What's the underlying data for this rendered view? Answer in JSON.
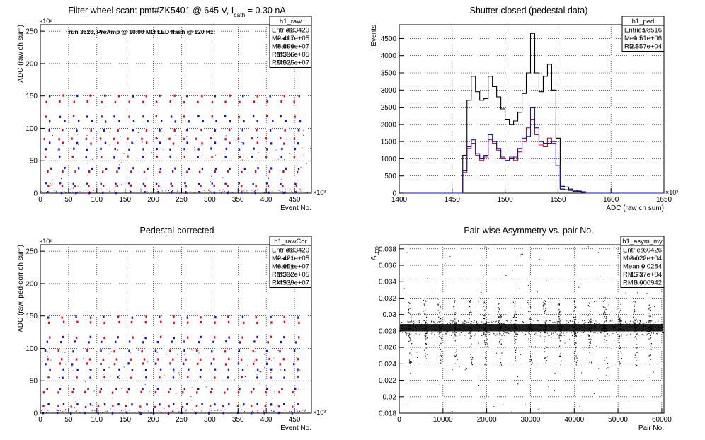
{
  "chart_data": [
    {
      "type": "scatter",
      "title": "Filter wheel scan: pmt#ZK5401 @   645 V, I",
      "title_sub": "cath",
      "title_tail": " = 0.30 nA",
      "annotation": "run 3620, PreAmp @ 10.00 MΩ LED flash @  120 Hz:",
      "xlabel": "Event No.",
      "ylabel": "ADC (raw ch sum)",
      "x_exponent": "×10³",
      "y_exponent": "×10⁶",
      "xlim": [
        0,
        480
      ],
      "ylim": [
        0,
        260
      ],
      "xticks": [
        "0",
        "50",
        "100",
        "150",
        "200",
        "250",
        "300",
        "350",
        "400",
        "450"
      ],
      "yticks": [
        "0",
        "50",
        "100",
        "150",
        "200",
        "250"
      ],
      "grid": true,
      "stats": {
        "name": "h1_raw",
        "rows": [
          [
            "Entries",
            "483420"
          ],
          [
            "Mean x",
            "2.417e+05"
          ],
          [
            "Mean y",
            "5.596e+07"
          ],
          [
            "RMS x",
            "1.396e+05"
          ],
          [
            "RMS y",
            "5.025e+07"
          ]
        ]
      },
      "bands": [
        {
          "value": 150,
          "colors": [
            "blue",
            "red"
          ]
        },
        {
          "value": 141,
          "colors": [
            "red"
          ]
        },
        {
          "value": 118,
          "colors": [
            "red",
            "blue"
          ]
        },
        {
          "value": 111,
          "colors": [
            "blue"
          ]
        },
        {
          "value": 97,
          "colors": [
            "blue",
            "red"
          ]
        },
        {
          "value": 84,
          "colors": [
            "red"
          ]
        },
        {
          "value": 77,
          "colors": [
            "blue",
            "red"
          ]
        },
        {
          "value": 68,
          "colors": [
            "blue"
          ]
        },
        {
          "value": 56,
          "colors": [
            "red",
            "blue"
          ]
        },
        {
          "value": 38,
          "colors": [
            "blue"
          ]
        },
        {
          "value": 33,
          "colors": [
            "red"
          ]
        },
        {
          "value": 15,
          "colors": [
            "blue"
          ]
        },
        {
          "value": 11,
          "colors": [
            "red"
          ]
        },
        {
          "value": 1,
          "colors": [
            "blue"
          ]
        }
      ],
      "colors": {
        "red": "#e8001c",
        "blue": "#1010d0"
      }
    },
    {
      "type": "histogram",
      "title": "Shutter closed (pedestal data)",
      "xlabel": "ADC (raw ch sum)",
      "ylabel": "Events",
      "x_exponent": "×10³",
      "xlim": [
        1400,
        1650
      ],
      "ylim": [
        0,
        4900
      ],
      "xticks": [
        "1400",
        "1450",
        "1500",
        "1550",
        "1600",
        "1650"
      ],
      "yticks": [
        "0",
        "500",
        "1000",
        "1500",
        "2000",
        "2500",
        "3000",
        "3500",
        "4000",
        "4500"
      ],
      "grid": true,
      "stats": {
        "name": "h1_ped",
        "rows": [
          [
            "Entries",
            "98516"
          ],
          [
            "Mean",
            "1.51e+06"
          ],
          [
            "RMS",
            "2.657e+04"
          ]
        ]
      },
      "bin_edges": [
        1460,
        1464,
        1468,
        1472,
        1476,
        1480,
        1484,
        1488,
        1492,
        1496,
        1500,
        1504,
        1508,
        1512,
        1516,
        1520,
        1524,
        1528,
        1532,
        1536,
        1540,
        1544,
        1548,
        1552,
        1556,
        1560,
        1564,
        1568,
        1572,
        1576
      ],
      "series": [
        {
          "color": "#000000",
          "values": [
            1100,
            2700,
            3400,
            2950,
            2700,
            2750,
            3400,
            3100,
            2800,
            2450,
            2150,
            2000,
            2100,
            2350,
            2900,
            3500,
            4650,
            3500,
            2950,
            3400,
            3750,
            3000,
            1600,
            200,
            180,
            120,
            80,
            60,
            40
          ]
        },
        {
          "color": "#e8001c",
          "values": [
            600,
            1300,
            1450,
            1100,
            950,
            1050,
            1550,
            1450,
            1250,
            1000,
            950,
            1050,
            950,
            1200,
            1500,
            1900,
            2150,
            1700,
            1400,
            1350,
            1600,
            1450,
            800,
            120,
            100,
            80,
            50,
            40,
            20
          ]
        },
        {
          "color": "#1010d0",
          "values": [
            650,
            1350,
            1550,
            1150,
            1000,
            1100,
            1700,
            1500,
            1300,
            1050,
            950,
            1000,
            1050,
            1300,
            1600,
            1650,
            2500,
            1900,
            1500,
            1450,
            1450,
            1500,
            800,
            120,
            100,
            80,
            50,
            40,
            20
          ]
        }
      ]
    },
    {
      "type": "scatter",
      "title": "Pedestal-corrected",
      "xlabel": "Event No.",
      "ylabel": "ADC (raw, ped-corr ch sum)",
      "x_exponent": "×10³",
      "y_exponent": "×10⁶",
      "xlim": [
        0,
        480
      ],
      "ylim": [
        0,
        260
      ],
      "xticks": [
        "0",
        "50",
        "100",
        "150",
        "200",
        "250",
        "300",
        "350",
        "400",
        "450"
      ],
      "yticks": [
        "0",
        "50",
        "100",
        "150",
        "200",
        "250"
      ],
      "grid": true,
      "stats": {
        "name": "h1_rawCor",
        "rows": [
          [
            "Entries",
            "483420"
          ],
          [
            "Mean x",
            "2.421e+05"
          ],
          [
            "Mean y",
            "6.051e+07"
          ],
          [
            "RMS x",
            "1.392e+05"
          ],
          [
            "RMS y",
            "4.939e+07"
          ]
        ]
      },
      "bands": [
        {
          "value": 148,
          "colors": [
            "blue",
            "red"
          ]
        },
        {
          "value": 140,
          "colors": [
            "red"
          ]
        },
        {
          "value": 117,
          "colors": [
            "red",
            "blue"
          ]
        },
        {
          "value": 110,
          "colors": [
            "blue"
          ]
        },
        {
          "value": 96,
          "colors": [
            "blue",
            "red"
          ]
        },
        {
          "value": 83,
          "colors": [
            "red"
          ]
        },
        {
          "value": 76,
          "colors": [
            "blue",
            "red"
          ]
        },
        {
          "value": 67,
          "colors": [
            "blue"
          ]
        },
        {
          "value": 55,
          "colors": [
            "red",
            "blue"
          ]
        },
        {
          "value": 37,
          "colors": [
            "blue"
          ]
        },
        {
          "value": 32,
          "colors": [
            "red"
          ]
        },
        {
          "value": 14,
          "colors": [
            "blue"
          ]
        },
        {
          "value": 10,
          "colors": [
            "red"
          ]
        },
        {
          "value": 0,
          "colors": [
            "blue"
          ]
        }
      ],
      "colors": {
        "red": "#e8001c",
        "blue": "#1010d0"
      }
    },
    {
      "type": "scatter",
      "title": "Pair-wise Asymmetry vs. pair No.",
      "xlabel": "Pair No.",
      "ylabel": "A",
      "ylabel_sub": "LED",
      "xlim": [
        0,
        60500
      ],
      "ylim": [
        0.018,
        0.0385
      ],
      "xticks": [
        "0",
        "10000",
        "20000",
        "30000",
        "40000",
        "50000",
        "60000"
      ],
      "yticks": [
        "0.018",
        "0.02",
        "0.022",
        "0.024",
        "0.026",
        "0.028",
        "0.03",
        "0.032",
        "0.034",
        "0.036",
        "0.038"
      ],
      "grid": true,
      "stats": {
        "name": "h1_asym_my",
        "rows": [
          [
            "Entries",
            "60426"
          ],
          [
            "Mean x",
            "3.022e+04"
          ],
          [
            "Mean y",
            "0.0284"
          ],
          [
            "RMS x",
            "1.737e+04"
          ],
          [
            "RMS y",
            "0.000942"
          ]
        ]
      },
      "band_center": 0.0284,
      "band_halfwidth": 0.00045,
      "spike_positions": [
        2400,
        5900,
        9300,
        12700,
        16200,
        19600,
        23000,
        26400,
        29800,
        33300,
        36700,
        40100,
        43500,
        47000,
        50400,
        53800,
        57200
      ],
      "spike_top": 0.0318,
      "spike_bottom": 0.0238
    }
  ]
}
